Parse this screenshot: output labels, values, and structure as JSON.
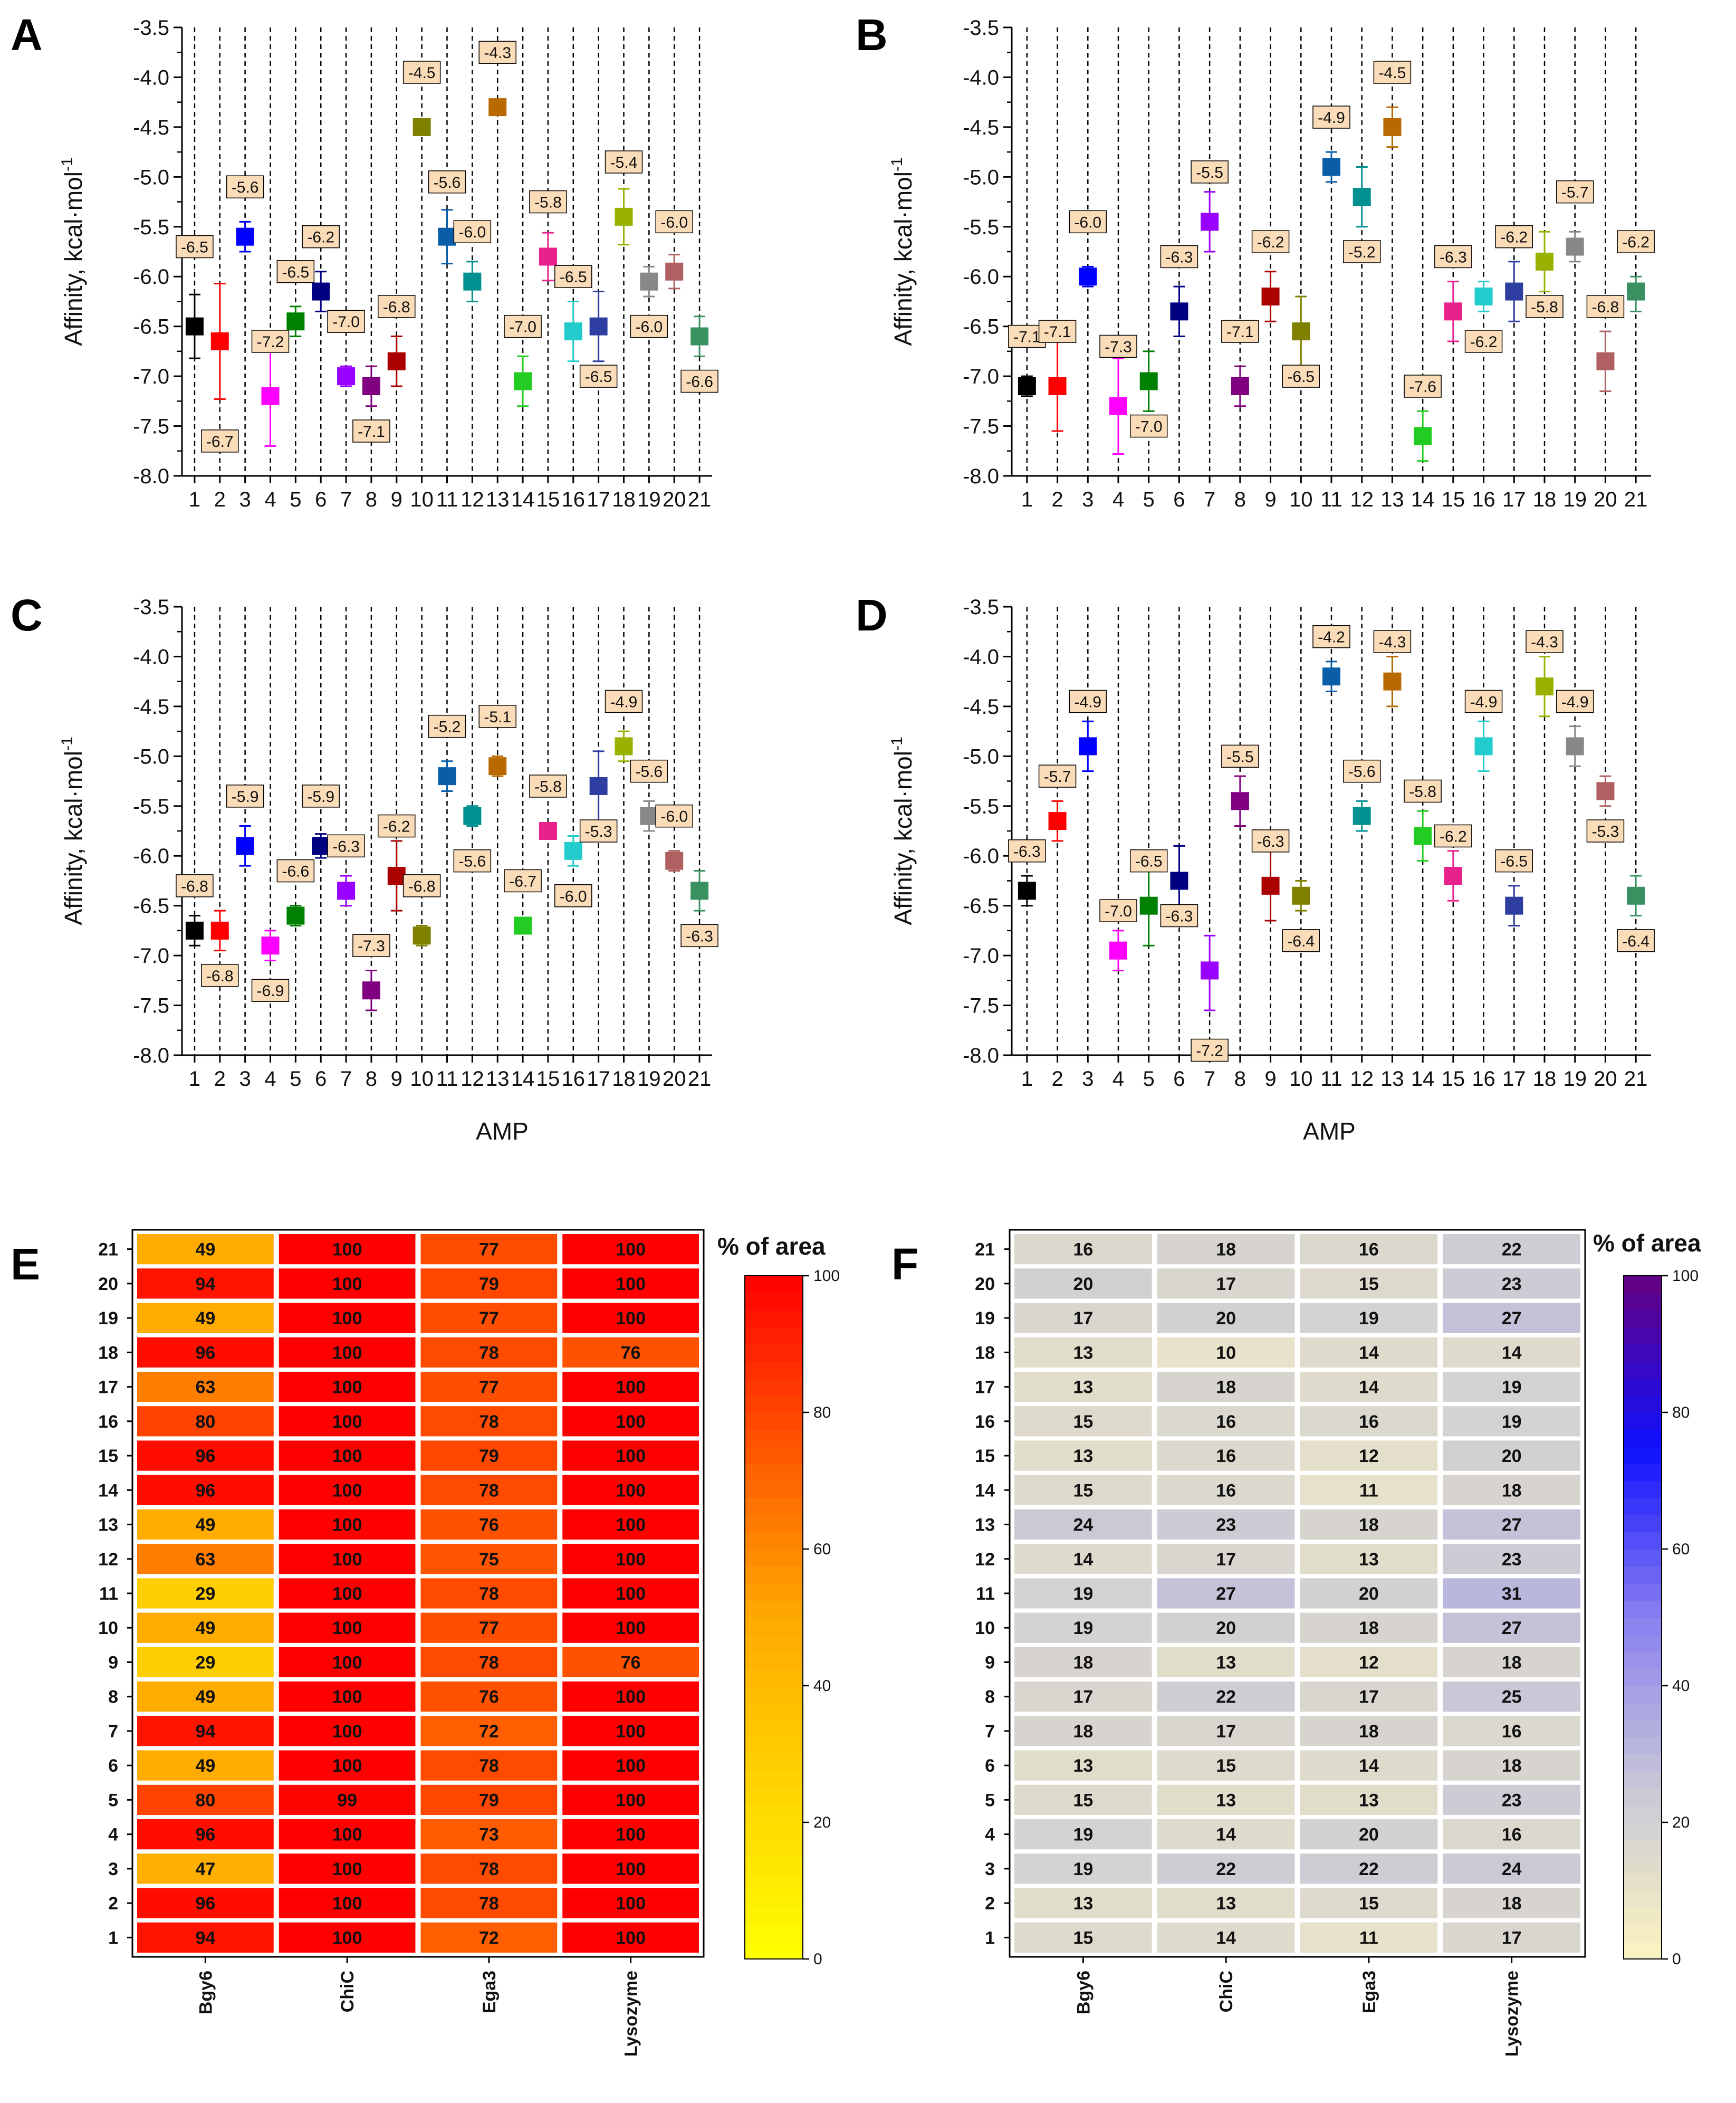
{
  "figure": {
    "x_axis_label": "AMP",
    "y_axis_label": "Affinity, kcal·mol",
    "y_axis_label_sup": "-1",
    "heatmap_colorbar_label": "% of area"
  },
  "chart_data": [
    {
      "panel": "A",
      "type": "scatter",
      "x": [
        1,
        2,
        3,
        4,
        5,
        6,
        7,
        8,
        9,
        10,
        11,
        12,
        13,
        14,
        15,
        16,
        17,
        18,
        19,
        20,
        21
      ],
      "values": [
        -6.5,
        -6.65,
        -5.6,
        -7.2,
        -6.45,
        -6.15,
        -7.0,
        -7.1,
        -6.85,
        -4.5,
        -5.6,
        -6.05,
        -4.3,
        -7.05,
        -5.8,
        -6.55,
        -6.5,
        -5.4,
        -6.05,
        -5.95,
        -6.6
      ],
      "err_top": [
        -6.18,
        -6.07,
        -5.45,
        -6.7,
        -6.3,
        -5.95,
        -6.9,
        -6.9,
        -6.6,
        -4.5,
        -5.33,
        -5.85,
        -4.3,
        -6.8,
        -5.56,
        -6.25,
        -6.15,
        -5.12,
        -5.9,
        -5.78,
        -6.4
      ],
      "err_bottom": [
        -6.82,
        -7.23,
        -5.75,
        -7.7,
        -6.6,
        -6.35,
        -7.1,
        -7.3,
        -7.1,
        -4.5,
        -5.87,
        -6.25,
        -4.3,
        -7.3,
        -6.04,
        -6.85,
        -6.85,
        -5.68,
        -6.2,
        -6.12,
        -6.8
      ],
      "labels": [
        "-6.5",
        "-6.7",
        "-5.6",
        "-7.2",
        "-6.5",
        "-6.2",
        "-7.0",
        "-7.1",
        "-6.8",
        "-4.5",
        "-5.6",
        "-6.0",
        "-4.3",
        "-7.0",
        "-5.8",
        "-6.5",
        "-6.5",
        "-5.4",
        "-6.0",
        "-6.0",
        "-6.6"
      ],
      "label_y": [
        -5.7,
        -7.65,
        -5.1,
        -6.65,
        -5.95,
        -5.6,
        -6.45,
        -7.55,
        -6.3,
        -3.95,
        -5.05,
        -5.55,
        -3.75,
        -6.5,
        -5.25,
        -6.0,
        -7.0,
        -4.85,
        -6.5,
        -5.45,
        -7.05
      ],
      "ylim": [
        -8.0,
        -3.5
      ],
      "yticks": [
        "-3.5",
        "-4.0",
        "-4.5",
        "-5.0",
        "-5.5",
        "-6.0",
        "-6.5",
        "-7.0",
        "-7.5",
        "-8.0"
      ],
      "xticks": [
        "1",
        "2",
        "3",
        "4",
        "5",
        "6",
        "7",
        "8",
        "9",
        "10",
        "11",
        "12",
        "13",
        "14",
        "15",
        "16",
        "17",
        "18",
        "19",
        "20",
        "21"
      ],
      "grid": "vertical dashed",
      "xlabel": "",
      "ylabel": "Affinity, kcal·mol-1"
    },
    {
      "panel": "B",
      "type": "scatter",
      "x": [
        1,
        2,
        3,
        4,
        5,
        6,
        7,
        8,
        9,
        10,
        11,
        12,
        13,
        14,
        15,
        16,
        17,
        18,
        19,
        20,
        21
      ],
      "values": [
        -7.1,
        -7.1,
        -6.0,
        -7.3,
        -7.05,
        -6.35,
        -5.45,
        -7.1,
        -6.2,
        -6.55,
        -4.9,
        -5.2,
        -4.5,
        -7.6,
        -6.35,
        -6.2,
        -6.15,
        -5.85,
        -5.7,
        -6.85,
        -6.15
      ],
      "err_top": [
        -7.0,
        -6.65,
        -5.9,
        -6.82,
        -6.75,
        -6.1,
        -5.15,
        -6.9,
        -5.95,
        -6.2,
        -4.75,
        -4.9,
        -4.3,
        -7.35,
        -6.05,
        -6.05,
        -5.85,
        -5.55,
        -5.55,
        -6.55,
        -6.0
      ],
      "err_bottom": [
        -7.2,
        -7.55,
        -6.1,
        -7.78,
        -7.35,
        -6.6,
        -5.75,
        -7.3,
        -6.45,
        -6.9,
        -5.05,
        -5.5,
        -4.7,
        -7.85,
        -6.65,
        -6.35,
        -6.45,
        -6.15,
        -5.85,
        -7.15,
        -6.35
      ],
      "labels": [
        "-7.1",
        "-7.1",
        "-6.0",
        "-7.3",
        "-7.0",
        "-6.3",
        "-5.5",
        "-7.1",
        "-6.2",
        "-6.5",
        "-4.9",
        "-5.2",
        "-4.5",
        "-7.6",
        "-6.3",
        "-6.2",
        "-6.2",
        "-5.8",
        "-5.7",
        "-6.8",
        "-6.2"
      ],
      "label_y": [
        -6.6,
        -6.55,
        -5.45,
        -6.7,
        -7.5,
        -5.8,
        -4.95,
        -6.55,
        -5.65,
        -7.0,
        -4.4,
        -5.75,
        -3.95,
        -7.1,
        -5.8,
        -6.65,
        -5.6,
        -6.3,
        -5.15,
        -6.3,
        -5.65
      ],
      "ylim": [
        -8.0,
        -3.5
      ],
      "yticks": [
        "-3.5",
        "-4.0",
        "-4.5",
        "-5.0",
        "-5.5",
        "-6.0",
        "-6.5",
        "-7.0",
        "-7.5",
        "-8.0"
      ],
      "xticks": [
        "1",
        "2",
        "3",
        "4",
        "5",
        "6",
        "7",
        "8",
        "9",
        "10",
        "11",
        "12",
        "13",
        "14",
        "15",
        "16",
        "17",
        "18",
        "19",
        "20",
        "21"
      ],
      "grid": "vertical dashed",
      "xlabel": "",
      "ylabel": "Affinity, kcal·mol-1"
    },
    {
      "panel": "C",
      "type": "scatter",
      "x": [
        1,
        2,
        3,
        4,
        5,
        6,
        7,
        8,
        9,
        10,
        11,
        12,
        13,
        14,
        15,
        16,
        17,
        18,
        19,
        20,
        21
      ],
      "values": [
        -6.75,
        -6.75,
        -5.9,
        -6.9,
        -6.6,
        -5.9,
        -6.35,
        -7.35,
        -6.2,
        -6.8,
        -5.2,
        -5.6,
        -5.1,
        -6.7,
        -5.75,
        -5.95,
        -5.3,
        -4.9,
        -5.6,
        -6.05,
        -6.35
      ],
      "err_top": [
        -6.6,
        -6.55,
        -5.7,
        -6.75,
        -6.5,
        -5.78,
        -6.2,
        -7.15,
        -5.85,
        -6.7,
        -5.05,
        -5.5,
        -5.0,
        -6.7,
        -5.75,
        -5.8,
        -4.95,
        -4.75,
        -5.45,
        -5.95,
        -6.15
      ],
      "err_bottom": [
        -6.9,
        -6.95,
        -6.1,
        -7.05,
        -6.7,
        -6.02,
        -6.5,
        -7.55,
        -6.55,
        -6.9,
        -5.35,
        -5.7,
        -5.2,
        -6.7,
        -5.75,
        -6.1,
        -5.65,
        -5.05,
        -5.75,
        -6.15,
        -6.55
      ],
      "labels": [
        "-6.8",
        "-6.8",
        "-5.9",
        "-6.9",
        "-6.6",
        "-5.9",
        "-6.3",
        "-7.3",
        "-6.2",
        "-6.8",
        "-5.2",
        "-5.6",
        "-5.1",
        "-6.7",
        "-5.8",
        "-6.0",
        "-5.3",
        "-4.9",
        "-5.6",
        "-6.0",
        "-6.3"
      ],
      "label_y": [
        -6.3,
        -7.2,
        -5.4,
        -7.35,
        -6.15,
        -5.4,
        -5.9,
        -6.9,
        -5.7,
        -6.3,
        -4.7,
        -6.05,
        -4.6,
        -6.25,
        -5.3,
        -6.4,
        -5.75,
        -4.45,
        -5.15,
        -5.6,
        -6.8
      ],
      "ylim": [
        -8.0,
        -3.5
      ],
      "yticks": [
        "-3.5",
        "-4.0",
        "-4.5",
        "-5.0",
        "-5.5",
        "-6.0",
        "-6.5",
        "-7.0",
        "-7.5",
        "-8.0"
      ],
      "xticks": [
        "1",
        "2",
        "3",
        "4",
        "5",
        "6",
        "7",
        "8",
        "9",
        "10",
        "11",
        "12",
        "13",
        "14",
        "15",
        "16",
        "17",
        "18",
        "19",
        "20",
        "21"
      ],
      "grid": "vertical dashed",
      "xlabel": "AMP",
      "ylabel": "Affinity, kcal·mol-1"
    },
    {
      "panel": "D",
      "type": "scatter",
      "x": [
        1,
        2,
        3,
        4,
        5,
        6,
        7,
        8,
        9,
        10,
        11,
        12,
        13,
        14,
        15,
        16,
        17,
        18,
        19,
        20,
        21
      ],
      "values": [
        -6.35,
        -5.65,
        -4.9,
        -6.95,
        -6.5,
        -6.25,
        -7.15,
        -5.45,
        -6.3,
        -6.4,
        -4.2,
        -5.6,
        -4.25,
        -5.8,
        -6.2,
        -4.9,
        -6.5,
        -4.3,
        -4.9,
        -5.35,
        -6.4
      ],
      "err_top": [
        -6.2,
        -5.45,
        -4.65,
        -6.75,
        -6.1,
        -5.9,
        -6.8,
        -5.2,
        -5.95,
        -6.25,
        -4.05,
        -5.45,
        -4.0,
        -5.55,
        -5.95,
        -4.65,
        -6.3,
        -4.0,
        -4.7,
        -5.2,
        -6.2
      ],
      "err_bottom": [
        -6.5,
        -5.85,
        -5.15,
        -7.15,
        -6.9,
        -6.6,
        -7.55,
        -5.7,
        -6.65,
        -6.55,
        -4.35,
        -5.75,
        -4.5,
        -6.05,
        -6.45,
        -5.15,
        -6.7,
        -4.6,
        -5.1,
        -5.5,
        -6.6
      ],
      "labels": [
        "-6.3",
        "-5.7",
        "-4.9",
        "-7.0",
        "-6.5",
        "-6.3",
        "-7.2",
        "-5.5",
        "-6.3",
        "-6.4",
        "-4.2",
        "-5.6",
        "-4.3",
        "-5.8",
        "-6.2",
        "-4.9",
        "-6.5",
        "-4.3",
        "-4.9",
        "-5.3",
        "-6.4"
      ],
      "label_y": [
        -5.95,
        -5.2,
        -4.45,
        -6.55,
        -6.05,
        -6.6,
        -7.95,
        -5.0,
        -5.85,
        -6.85,
        -3.8,
        -5.15,
        -3.85,
        -5.35,
        -5.8,
        -4.45,
        -6.05,
        -3.85,
        -4.45,
        -5.75,
        -6.85
      ],
      "ylim": [
        -8.0,
        -3.5
      ],
      "yticks": [
        "-3.5",
        "-4.0",
        "-4.5",
        "-5.0",
        "-5.5",
        "-6.0",
        "-6.5",
        "-7.0",
        "-7.5",
        "-8.0"
      ],
      "xticks": [
        "1",
        "2",
        "3",
        "4",
        "5",
        "6",
        "7",
        "8",
        "9",
        "10",
        "11",
        "12",
        "13",
        "14",
        "15",
        "16",
        "17",
        "18",
        "19",
        "20",
        "21"
      ],
      "grid": "vertical dashed",
      "xlabel": "AMP",
      "ylabel": "Affinity, kcal·mol-1"
    },
    {
      "panel": "E",
      "type": "heatmap",
      "columns": [
        "Bgy6",
        "ChiC",
        "Ega3",
        "Lysozyme"
      ],
      "rows": [
        "21",
        "20",
        "19",
        "18",
        "17",
        "16",
        "15",
        "14",
        "13",
        "12",
        "11",
        "10",
        "9",
        "8",
        "7",
        "6",
        "5",
        "4",
        "3",
        "2",
        "1"
      ],
      "values": [
        [
          49,
          100,
          77,
          100
        ],
        [
          94,
          100,
          79,
          100
        ],
        [
          49,
          100,
          77,
          100
        ],
        [
          96,
          100,
          78,
          76
        ],
        [
          63,
          100,
          77,
          100
        ],
        [
          80,
          100,
          78,
          100
        ],
        [
          96,
          100,
          79,
          100
        ],
        [
          96,
          100,
          78,
          100
        ],
        [
          49,
          100,
          76,
          100
        ],
        [
          63,
          100,
          75,
          100
        ],
        [
          29,
          100,
          78,
          100
        ],
        [
          49,
          100,
          77,
          100
        ],
        [
          29,
          100,
          78,
          76
        ],
        [
          49,
          100,
          76,
          100
        ],
        [
          94,
          100,
          72,
          100
        ],
        [
          49,
          100,
          78,
          100
        ],
        [
          80,
          99,
          79,
          100
        ],
        [
          96,
          100,
          73,
          100
        ],
        [
          47,
          100,
          78,
          100
        ],
        [
          96,
          100,
          78,
          100
        ],
        [
          94,
          100,
          72,
          100
        ]
      ],
      "colorbar": {
        "label": "% of area",
        "range": [
          0,
          100
        ],
        "ticks": [
          "0",
          "20",
          "40",
          "60",
          "80",
          "100"
        ],
        "colors": [
          "#ffff00",
          "#ffaa00",
          "#ff0000"
        ]
      }
    },
    {
      "panel": "F",
      "type": "heatmap",
      "columns": [
        "Bgy6",
        "ChiC",
        "Ega3",
        "Lysozyme"
      ],
      "rows": [
        "21",
        "20",
        "19",
        "18",
        "17",
        "16",
        "15",
        "14",
        "13",
        "12",
        "11",
        "10",
        "9",
        "8",
        "7",
        "6",
        "5",
        "4",
        "3",
        "2",
        "1"
      ],
      "values": [
        [
          16,
          18,
          16,
          22
        ],
        [
          20,
          17,
          15,
          23
        ],
        [
          17,
          20,
          19,
          27
        ],
        [
          13,
          10,
          14,
          14
        ],
        [
          13,
          18,
          14,
          19
        ],
        [
          15,
          16,
          16,
          19
        ],
        [
          13,
          16,
          12,
          20
        ],
        [
          15,
          16,
          11,
          18
        ],
        [
          24,
          23,
          18,
          27
        ],
        [
          14,
          17,
          13,
          23
        ],
        [
          19,
          27,
          20,
          31
        ],
        [
          19,
          20,
          18,
          27
        ],
        [
          18,
          13,
          12,
          18
        ],
        [
          17,
          22,
          17,
          25
        ],
        [
          18,
          17,
          18,
          16
        ],
        [
          13,
          15,
          14,
          18
        ],
        [
          15,
          13,
          13,
          23
        ],
        [
          19,
          14,
          20,
          16
        ],
        [
          19,
          22,
          22,
          24
        ],
        [
          13,
          13,
          15,
          18
        ],
        [
          15,
          14,
          11,
          17
        ]
      ],
      "colorbar": {
        "label": "% of area",
        "range": [
          0,
          100
        ],
        "ticks": [
          "0",
          "20",
          "40",
          "60",
          "80",
          "100"
        ],
        "colors": [
          "#fcf4c0",
          "#c8c8d6",
          "#8a80f0",
          "#1010ff",
          "#640080"
        ]
      }
    }
  ],
  "point_colors": [
    "#000000",
    "#ff0000",
    "#0000ff",
    "#ff00ff",
    "#008000",
    "#000080",
    "#9900ff",
    "#800080",
    "#aa0000",
    "#808000",
    "#0a5ea8",
    "#009090",
    "#b86a00",
    "#22cc22",
    "#e8218c",
    "#22cccc",
    "#2e3ea0",
    "#99b100",
    "#888888",
    "#b06060",
    "#3a9060"
  ]
}
